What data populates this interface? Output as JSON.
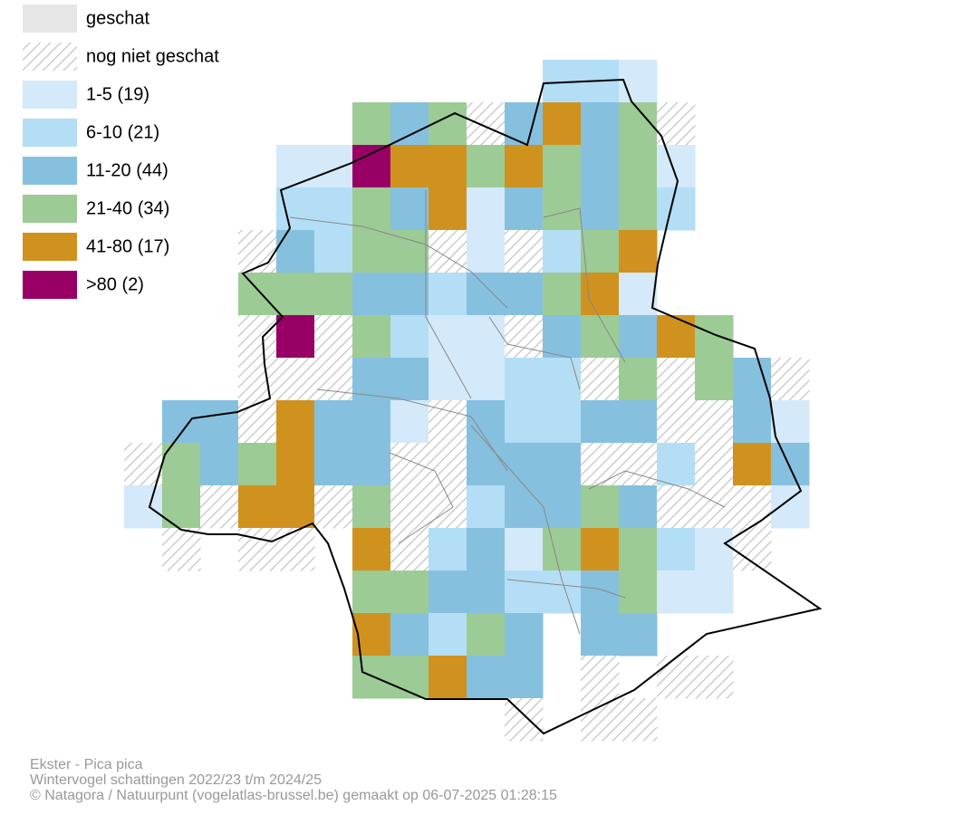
{
  "legend": {
    "items": [
      {
        "label": "geschat",
        "color": "#e6e6e6"
      },
      {
        "label": "nog niet geschat",
        "color": "#c4c4c4"
      },
      {
        "label": "1-5 (19)",
        "color": "#d4e9f9"
      },
      {
        "label": "6-10 (21)",
        "color": "#b3def6"
      },
      {
        "label": "11-20 (44)",
        "color": "#86c0df"
      },
      {
        "label": "21-40 (34)",
        "color": "#9ccb95"
      },
      {
        "label": "41-80 (17)",
        "color": "#d0921e"
      },
      {
        "label": ">80 (2)",
        "color": "#990066"
      }
    ]
  },
  "footer": {
    "lines": [
      "Ekster - Pica pica",
      "Wintervogel schattingen 2022/23 t/m 2024/25",
      "© Natagora / Natuurpunt (vogelatlas-brussel.be) gemaakt op 06-07-2025 01:28:15"
    ]
  }
}
